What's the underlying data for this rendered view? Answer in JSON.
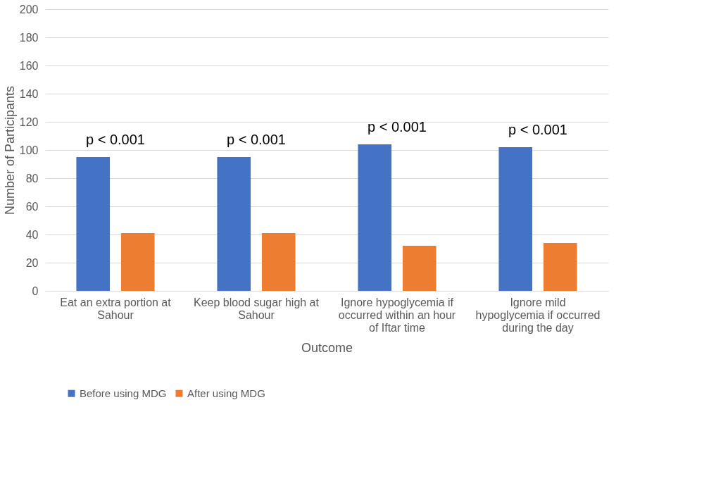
{
  "chart_data": {
    "type": "bar",
    "xlabel": "Outcome",
    "ylabel": "Number of Participants",
    "categories": [
      "Eat an extra portion at Sahour",
      "Keep blood sugar high at Sahour",
      "Ignore  hypoglycemia if occurred  within an hour of Iftar time",
      "Ignore  mild hypoglycemia if occurred  during the day"
    ],
    "series": [
      {
        "name": "Before using MDG",
        "color": "#4472c4",
        "values": [
          95,
          95,
          104,
          102
        ]
      },
      {
        "name": "After using MDG",
        "color": "#ed7d31",
        "values": [
          41,
          41,
          32,
          34
        ]
      }
    ],
    "ylim": [
      0,
      200
    ],
    "yticks": [
      0,
      20,
      40,
      60,
      80,
      100,
      120,
      140,
      160,
      180,
      200
    ],
    "grid": "y",
    "legend": "bottom",
    "annotations": [
      "p < 0.001",
      "p < 0.001",
      "p < 0.001",
      "p < 0.001"
    ]
  }
}
